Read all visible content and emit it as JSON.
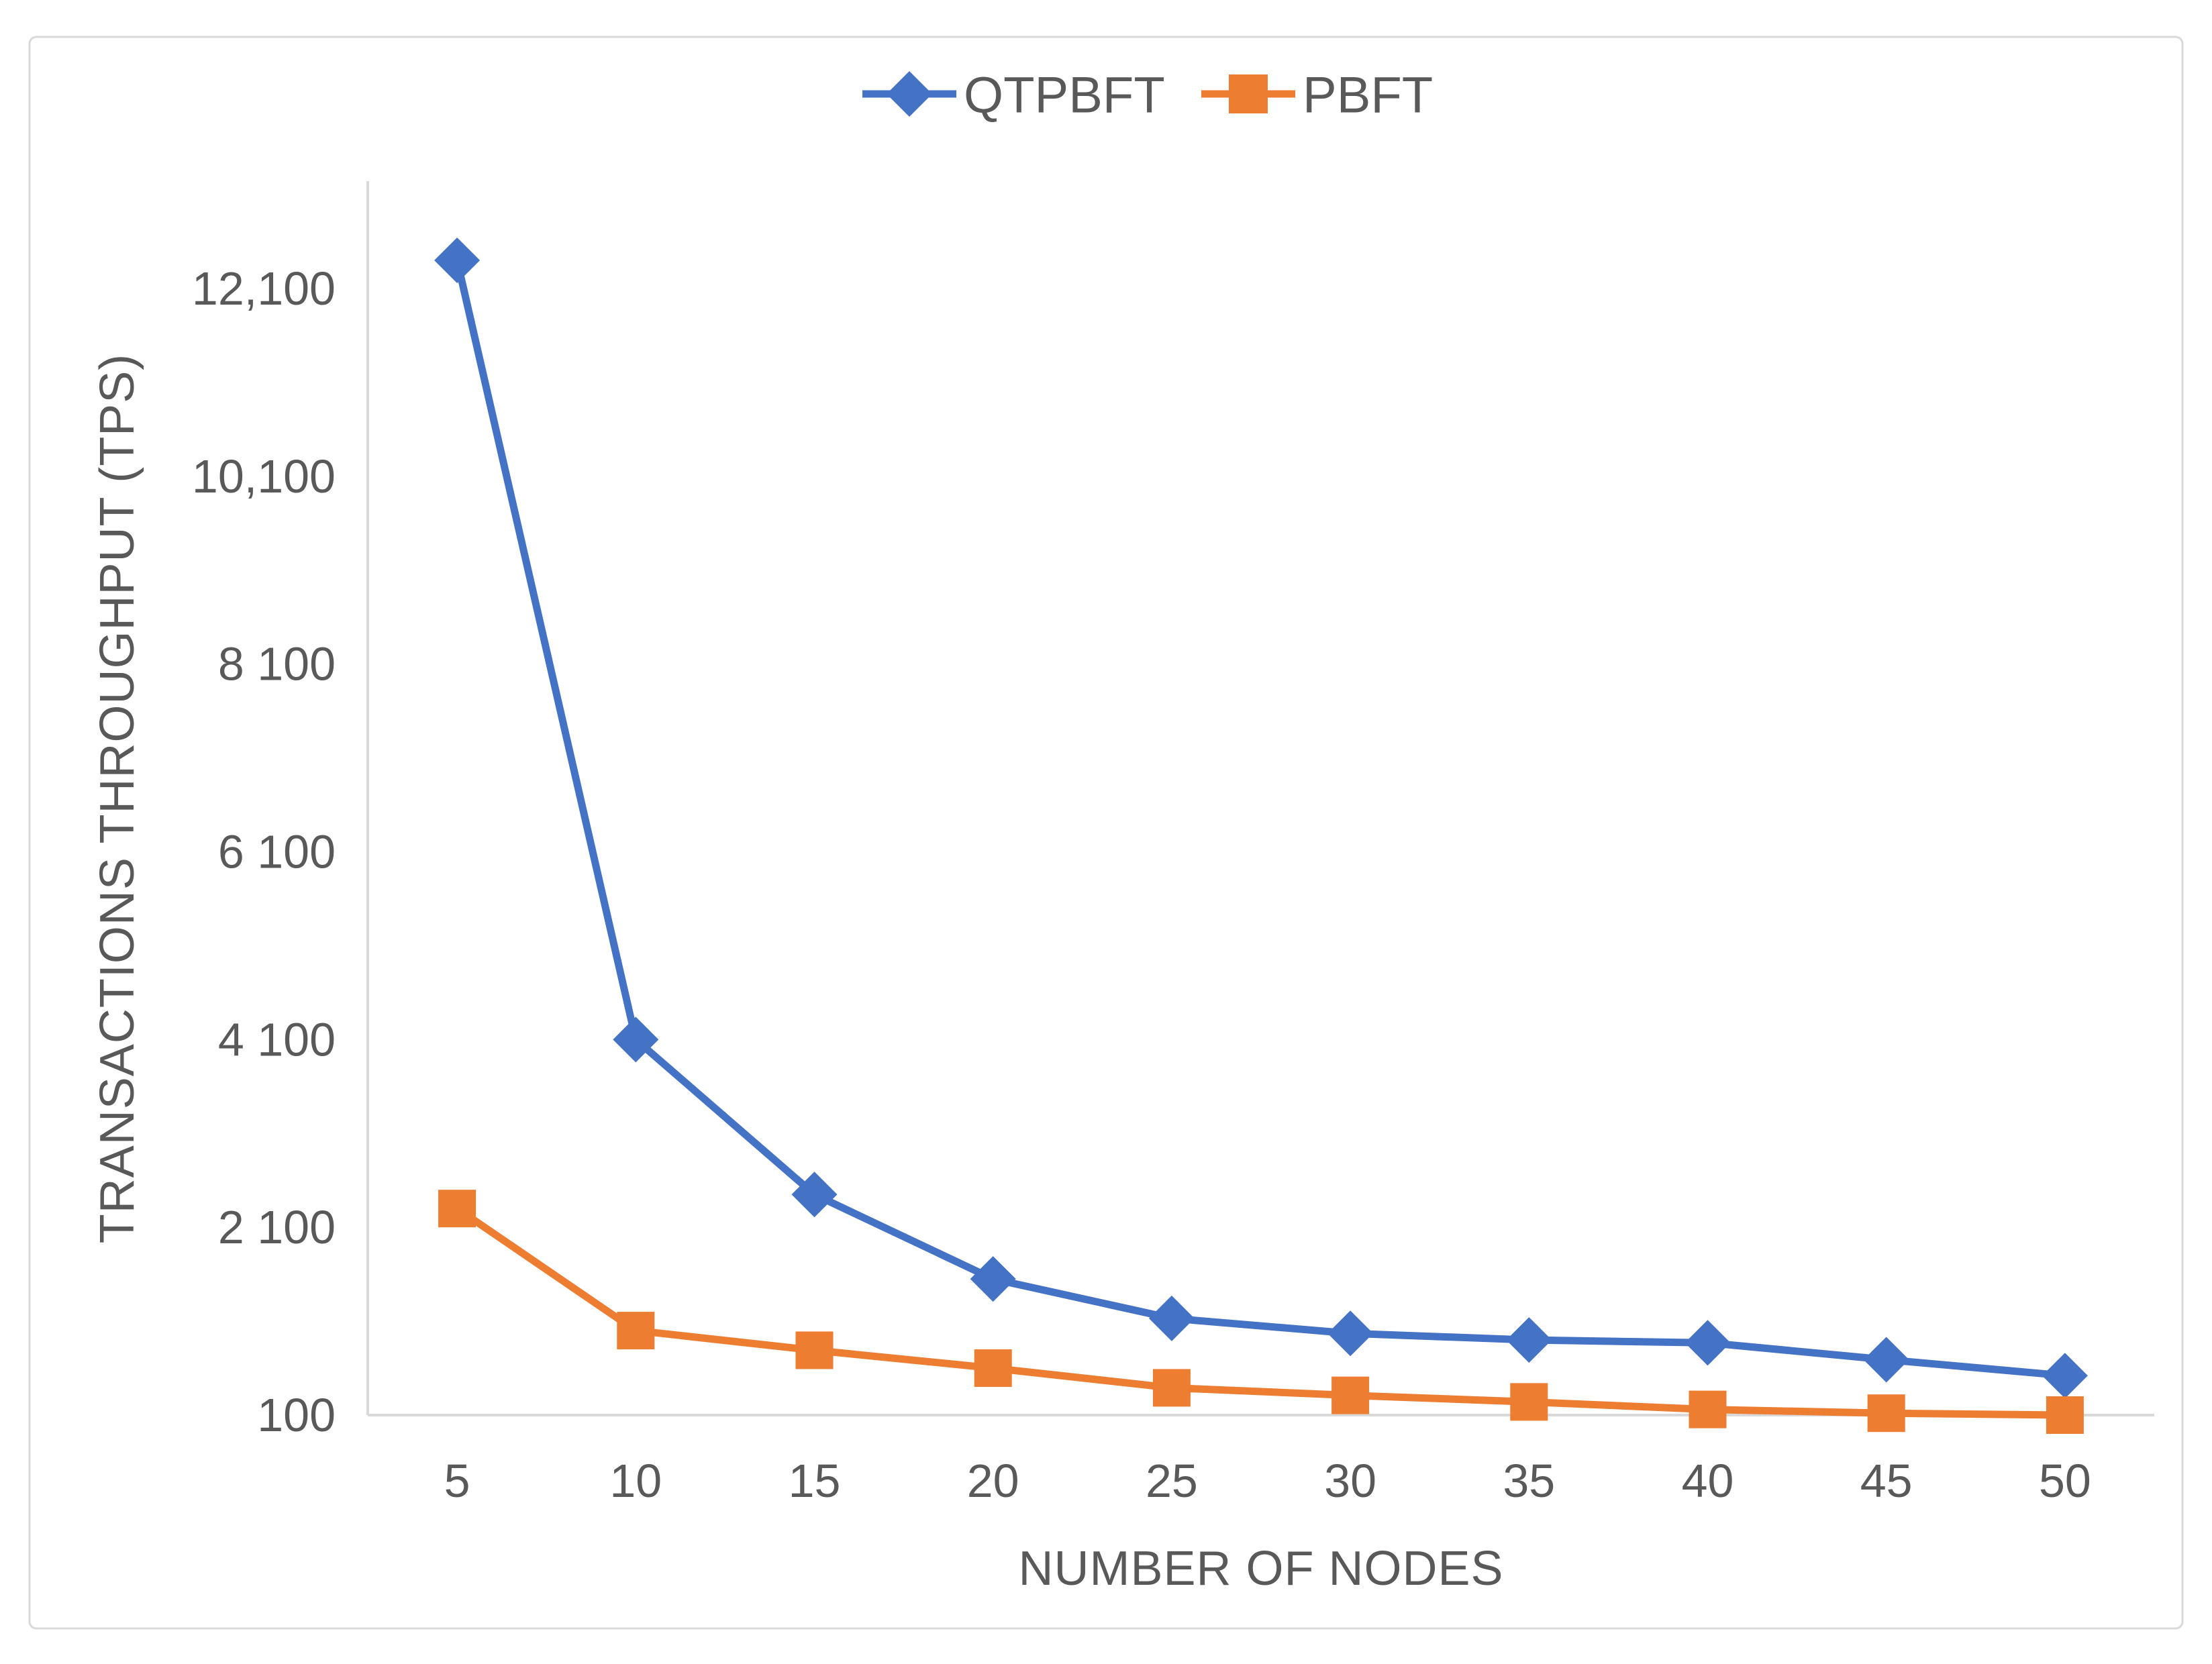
{
  "chart_data": {
    "type": "line",
    "title": "",
    "categories": [
      5,
      10,
      15,
      20,
      25,
      30,
      35,
      40,
      45,
      50
    ],
    "series": [
      {
        "name": "QTPBFT",
        "color": "#4472C4",
        "marker": "diamond",
        "values": [
          12400,
          4100,
          2450,
          1550,
          1130,
          970,
          900,
          870,
          690,
          520
        ]
      },
      {
        "name": "PBFT",
        "color": "#ED7D31",
        "marker": "square",
        "values": [
          2300,
          1000,
          790,
          600,
          390,
          310,
          240,
          160,
          120,
          100
        ]
      }
    ],
    "xlabel": "NUMBER OF NODES",
    "ylabel": "TRANSACTIONS THROUGHPUT (TPS)",
    "y_ticks": [
      {
        "value": 100,
        "label": "100"
      },
      {
        "value": 2100,
        "label": "2 100"
      },
      {
        "value": 4100,
        "label": "4 100"
      },
      {
        "value": 6100,
        "label": "6 100"
      },
      {
        "value": 8100,
        "label": "8 100"
      },
      {
        "value": 10100,
        "label": "10,100"
      },
      {
        "value": 12100,
        "label": "12,100"
      }
    ],
    "ylim": [
      100,
      13300
    ],
    "grid": false,
    "legend_position": "top-center"
  },
  "axes": {
    "x_title": "NUMBER OF NODES",
    "y_title": "TRANSACTIONS THROUGHPUT (TPS)"
  },
  "legend": {
    "items": [
      {
        "label": "QTPBFT",
        "marker": "diamond-marker-icon"
      },
      {
        "label": "PBFT",
        "marker": "square-marker-icon"
      }
    ]
  },
  "colors": {
    "series_qtpbft": "#4472C4",
    "series_pbft": "#ED7D31",
    "text": "#595959",
    "axis_line": "#D9D9D9",
    "background": "#FFFFFF"
  }
}
